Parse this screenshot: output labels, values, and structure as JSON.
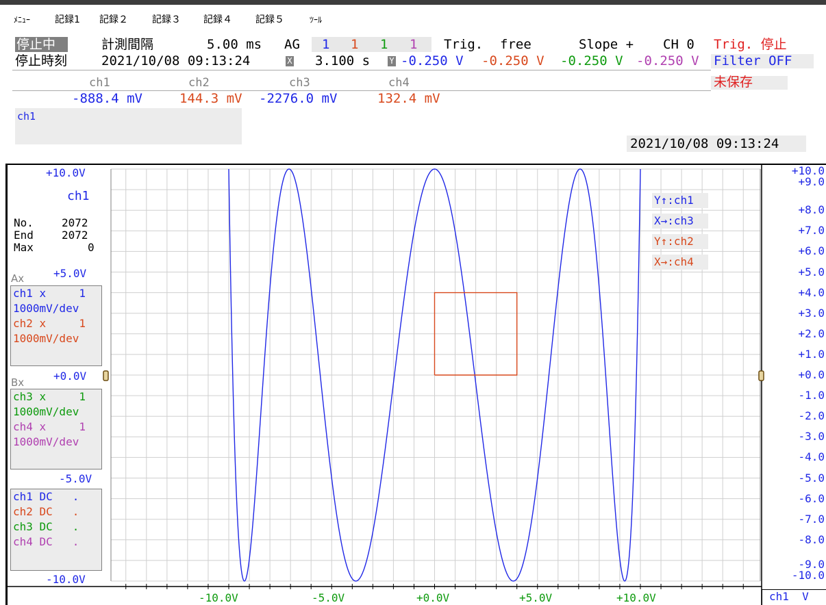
{
  "menu": {
    "items": [
      "ﾒﾆｭｰ",
      "記録1",
      "記録２",
      "記録３",
      "記録４",
      "記録５",
      "ﾂｰﾙ"
    ]
  },
  "status": {
    "state_badge": "停止中",
    "stop_time_label": "停止時刻",
    "interval_label": "計測間隔",
    "interval_value": "5.00 ms",
    "ag_label": "AG",
    "ag_values": [
      "1",
      "1",
      "1",
      "1"
    ],
    "trig_label": "Trig.",
    "trig_mode": "free",
    "slope_label": "Slope +",
    "ch_label": "CH 0",
    "trig_state": "Trig. 停止",
    "stop_time": "2021/10/08 09:13:24",
    "x_marker": "X",
    "x_value": "3.100 s",
    "y_marker": "Y",
    "y_values": [
      "-0.250 V",
      "-0.250 V",
      "-0.250 V",
      "-0.250 V"
    ],
    "filter": "Filter OFF",
    "channel_headers": [
      "ch1",
      "ch2",
      "ch3",
      "ch4"
    ],
    "save_state": "未保存",
    "readings": [
      "-888.4 mV",
      "144.3 mV",
      "-2276.0 mV",
      "132.4 mV"
    ],
    "comment_channel": "ch1",
    "timestamp": "2021/10/08 09:13:24"
  },
  "left_panel": {
    "y_top": "+10.0V",
    "channel": "ch1",
    "no_label": "No.",
    "no_value": "2072",
    "end_label": "End",
    "end_value": "2072",
    "max_label": "Max",
    "max_value": "0",
    "y_mid_upper": "+5.0V",
    "ax_label": "Ax",
    "ax_lines": [
      "ch1 x     1",
      "1000mV/dev",
      "ch2 x     1",
      "1000mV/dev"
    ],
    "y_zero": "+0.0V",
    "bx_label": "Bx",
    "bx_lines": [
      "ch3 x     1",
      "1000mV/dev",
      "ch4 x     1",
      "1000mV/dev"
    ],
    "y_mid_lower": "-5.0V",
    "coupling_lines": [
      "ch1 DC   .",
      "ch2 DC   .",
      "ch3 DC   .",
      "ch4 DC   ."
    ],
    "y_bottom": "-10.0V"
  },
  "right_axis": {
    "labels": [
      "+10.0",
      "+9.0",
      "+8.0",
      "+7.0",
      "+6.0",
      "+5.0",
      "+4.0",
      "+3.0",
      "+2.0",
      "+1.0",
      "+0.0",
      "-1.0",
      "-2.0",
      "-3.0",
      "-4.0",
      "-5.0",
      "-6.0",
      "-7.0",
      "-8.0",
      "-9.0",
      "-10.0"
    ],
    "unit_box": "ch1  V"
  },
  "x_axis": {
    "labels": [
      "-10.0V",
      "-5.0V",
      "+0.0V",
      "+5.0V",
      "+10.0V"
    ]
  },
  "legend": {
    "items": [
      "Y↑:ch1",
      "X→:ch3",
      "Y↑:ch2",
      "X→:ch4"
    ]
  },
  "colors": {
    "ch1": "#1f27e6",
    "ch2": "#d8481c",
    "ch3": "#0d9a0d",
    "ch4": "#b040b0"
  },
  "chart_data": [
    {
      "type": "scatter",
      "series": [
        {
          "name": "Y↑:ch1 / X→:ch3",
          "values": []
        }
      ],
      "xlim": [
        -10,
        10
      ],
      "ylim": [
        -10,
        10
      ],
      "grid": true,
      "legend_position": "top-right",
      "lissajous": {
        "x_freq": 1,
        "y_freq": 8,
        "amplitude": 10
      }
    },
    {
      "type": "line",
      "series": [
        {
          "name": "Y↑:ch2 / X→:ch4",
          "x": [
            0,
            4,
            4,
            0,
            0
          ],
          "y": [
            0,
            0,
            4,
            4,
            0
          ]
        }
      ],
      "xlim": [
        -10,
        10
      ],
      "ylim": [
        -10,
        10
      ]
    }
  ]
}
